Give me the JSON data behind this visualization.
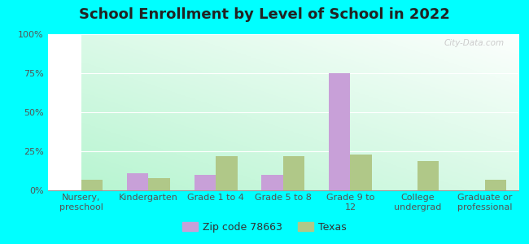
{
  "title": "School Enrollment by Level of School in 2022",
  "categories": [
    "Nursery,\npreschool",
    "Kindergarten",
    "Grade 1 to 4",
    "Grade 5 to 8",
    "Grade 9 to\n12",
    "College\nundergrad",
    "Graduate or\nprofessional"
  ],
  "zip_values": [
    0,
    11,
    10,
    10,
    75,
    0,
    0
  ],
  "texas_values": [
    7,
    8,
    22,
    22,
    23,
    19,
    7
  ],
  "zip_color": "#c8a0d8",
  "texas_color": "#b0c888",
  "ylim": [
    0,
    100
  ],
  "yticks": [
    0,
    25,
    50,
    75,
    100
  ],
  "ytick_labels": [
    "0%",
    "25%",
    "50%",
    "75%",
    "100%"
  ],
  "legend_zip": "Zip code 78663",
  "legend_texas": "Texas",
  "background_outer": "#00ffff",
  "watermark": "City-Data.com",
  "bar_width": 0.32,
  "title_fontsize": 13,
  "axis_fontsize": 8,
  "legend_fontsize": 9
}
